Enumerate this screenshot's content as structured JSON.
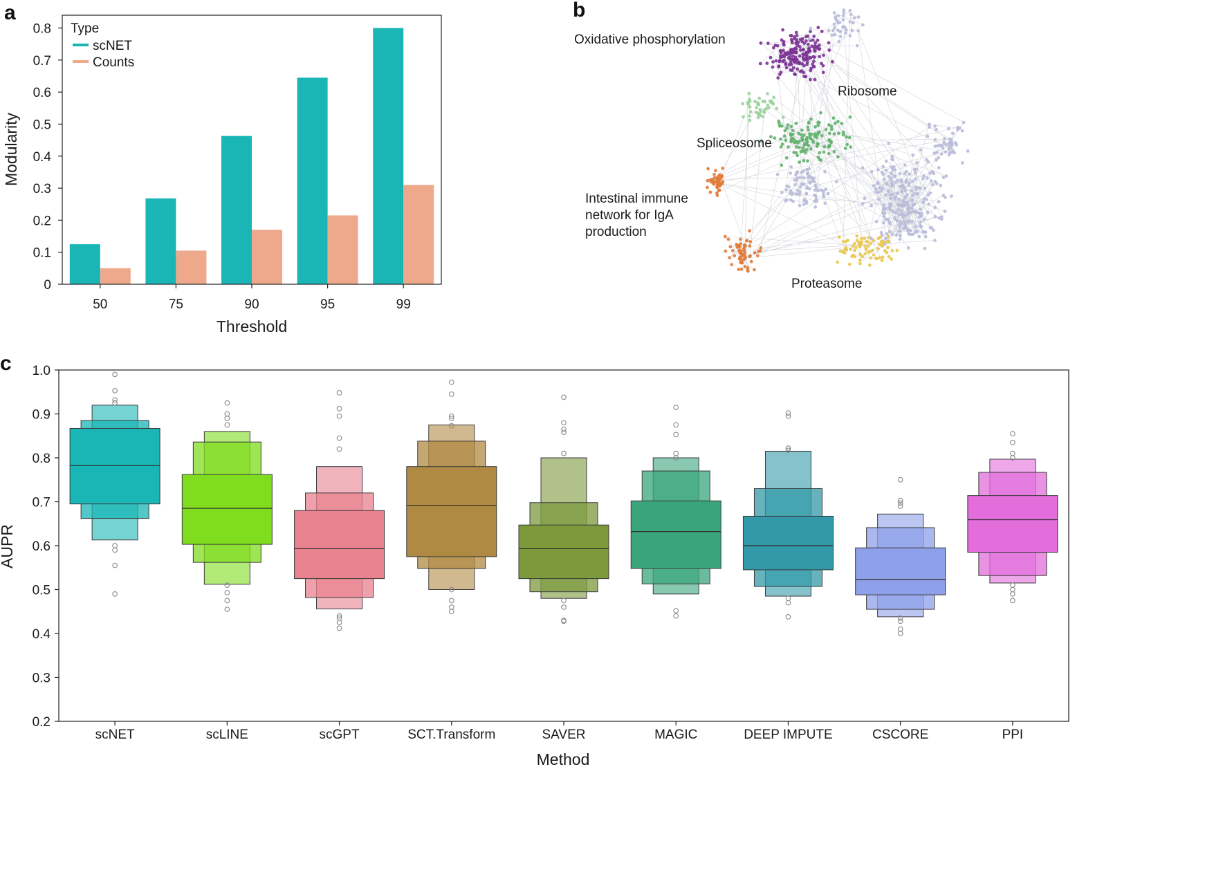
{
  "panels": {
    "a": "a",
    "b": "b",
    "c": "c"
  },
  "colors": {
    "scnet_teal": "#1AB5B5",
    "counts_salmon": "#EEA98C",
    "axis": "#222222",
    "network_edge": "#C8C8D4",
    "network_node": "#B9BBD9",
    "oxphos": "#7B3294",
    "spliceosome": "#62B36B",
    "spliceosome_light": "#9AD19A",
    "iga": "#E07B39",
    "proteasome": "#E9C74E",
    "outlier": "#8A8A8A"
  },
  "network": {
    "labels": {
      "oxphos": "Oxidative phosphorylation",
      "ribosome": "Ribosome",
      "spliceosome": "Spliceosome",
      "iga_line1": "Intestinal immune",
      "iga_line2": "network for IgA",
      "iga_line3": "production",
      "proteasome": "Proteasome"
    }
  },
  "chart_data": [
    {
      "id": "a",
      "type": "bar",
      "xlabel": "Threshold",
      "ylabel": "Modularity",
      "categories": [
        "50",
        "75",
        "90",
        "95",
        "99"
      ],
      "series": [
        {
          "name": "scNET",
          "values": [
            0.125,
            0.268,
            0.463,
            0.645,
            0.8
          ],
          "color": "#1AB5B5"
        },
        {
          "name": "Counts",
          "values": [
            0.05,
            0.105,
            0.17,
            0.215,
            0.31
          ],
          "color": "#EEA98C"
        }
      ],
      "ylim": [
        0,
        0.84
      ],
      "yticks": [
        0,
        0.1,
        0.2,
        0.3,
        0.4,
        0.5,
        0.6,
        0.7,
        0.8
      ],
      "ytick_labels": [
        "0",
        "0.1",
        "0.2",
        "0.3",
        "0.4",
        "0.5",
        "0.6",
        "0.7",
        "0.8"
      ],
      "legend_title": "Type",
      "legend_position": "top-left",
      "grid": false
    },
    {
      "id": "c",
      "type": "boxen",
      "xlabel": "Method",
      "ylabel": "AUPR",
      "ylim": [
        0.2,
        1.0
      ],
      "yticks": [
        0.2,
        0.3,
        0.4,
        0.5,
        0.6,
        0.7,
        0.8,
        0.9,
        1.0
      ],
      "ytick_labels": [
        "0.2",
        "0.3",
        "0.4",
        "0.5",
        "0.6",
        "0.7",
        "0.8",
        "0.9",
        "1.0"
      ],
      "grid": false,
      "methods": [
        {
          "name": "scNET",
          "color": "#1AB5B5",
          "median": 0.782,
          "levels": [
            [
              0.695,
              0.867
            ],
            [
              0.662,
              0.885
            ],
            [
              0.613,
              0.92
            ]
          ],
          "outliers": [
            0.99,
            0.953,
            0.932,
            0.925,
            0.6,
            0.59,
            0.555,
            0.49
          ]
        },
        {
          "name": "scLINE",
          "color": "#7FDC1E",
          "median": 0.685,
          "levels": [
            [
              0.603,
              0.762
            ],
            [
              0.562,
              0.836
            ],
            [
              0.512,
              0.86
            ]
          ],
          "outliers": [
            0.925,
            0.9,
            0.89,
            0.875,
            0.51,
            0.493,
            0.475,
            0.455
          ]
        },
        {
          "name": "scGPT",
          "color": "#E8828F",
          "median": 0.593,
          "levels": [
            [
              0.525,
              0.68
            ],
            [
              0.482,
              0.72
            ],
            [
              0.456,
              0.78
            ]
          ],
          "outliers": [
            0.948,
            0.912,
            0.895,
            0.845,
            0.82,
            0.44,
            0.435,
            0.425,
            0.412
          ]
        },
        {
          "name": "SCT.Transform",
          "color": "#B08A42",
          "median": 0.692,
          "levels": [
            [
              0.575,
              0.78
            ],
            [
              0.548,
              0.838
            ],
            [
              0.5,
              0.875
            ]
          ],
          "outliers": [
            0.972,
            0.945,
            0.895,
            0.89,
            0.873,
            0.5,
            0.475,
            0.46,
            0.45
          ]
        },
        {
          "name": "SAVER",
          "color": "#7C9A3C",
          "median": 0.593,
          "levels": [
            [
              0.525,
              0.647
            ],
            [
              0.495,
              0.698
            ],
            [
              0.48,
              0.8
            ]
          ],
          "outliers": [
            0.938,
            0.88,
            0.865,
            0.858,
            0.81,
            0.475,
            0.46,
            0.43,
            0.428
          ]
        },
        {
          "name": "MAGIC",
          "color": "#3AA57D",
          "median": 0.632,
          "levels": [
            [
              0.548,
              0.702
            ],
            [
              0.513,
              0.77
            ],
            [
              0.49,
              0.8
            ]
          ],
          "outliers": [
            0.915,
            0.875,
            0.853,
            0.81,
            0.8,
            0.452,
            0.44
          ]
        },
        {
          "name": "DEEP IMPUTE",
          "color": "#3399A8",
          "median": 0.6,
          "levels": [
            [
              0.545,
              0.667
            ],
            [
              0.507,
              0.73
            ],
            [
              0.485,
              0.815
            ]
          ],
          "outliers": [
            0.902,
            0.895,
            0.822,
            0.817,
            0.48,
            0.47,
            0.438
          ]
        },
        {
          "name": "CSCORE",
          "color": "#8EA0EA",
          "median": 0.523,
          "levels": [
            [
              0.488,
              0.595
            ],
            [
              0.455,
              0.641
            ],
            [
              0.438,
              0.672
            ]
          ],
          "outliers": [
            0.75,
            0.703,
            0.697,
            0.69,
            0.435,
            0.428,
            0.41,
            0.4
          ]
        },
        {
          "name": "PPI",
          "color": "#E26DDB",
          "median": 0.659,
          "levels": [
            [
              0.585,
              0.714
            ],
            [
              0.532,
              0.767
            ],
            [
              0.515,
              0.797
            ]
          ],
          "outliers": [
            0.855,
            0.835,
            0.81,
            0.8,
            0.51,
            0.5,
            0.49,
            0.475
          ]
        }
      ]
    }
  ]
}
